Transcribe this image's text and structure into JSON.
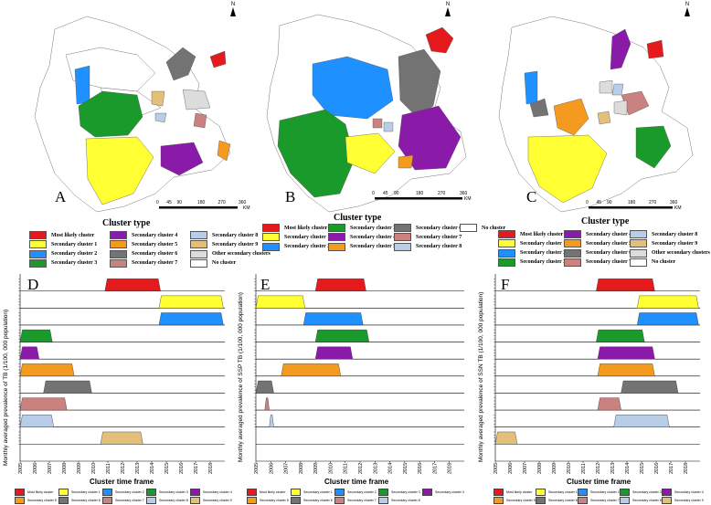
{
  "colors": {
    "red": "#e41a1c",
    "yellow": "#ffff33",
    "blue": "#1e90ff",
    "green": "#1a9a2a",
    "purple": "#8a1aa8",
    "orange": "#f39a1f",
    "gray": "#737373",
    "pink": "#c98280",
    "lightblue": "#b7cde8",
    "tan": "#e2c07a",
    "lightgray": "#dcdcdc",
    "white": "#ffffff"
  },
  "maps": [
    {
      "letter": "A",
      "north": "N",
      "scale_ticks": [
        "0",
        "45",
        "90",
        "180",
        "270",
        "360"
      ],
      "scale_unit": "KM"
    },
    {
      "letter": "B",
      "north": "N",
      "scale_ticks": [
        "0",
        "45",
        "90",
        "180",
        "270",
        "360"
      ],
      "scale_unit": "KM"
    },
    {
      "letter": "C",
      "north": "N",
      "scale_ticks": [
        "0",
        "45",
        "90",
        "180",
        "270",
        "360"
      ],
      "scale_unit": "KM"
    }
  ],
  "legend_a": {
    "title": "Cluster type",
    "items": [
      {
        "label": "Most likely cluster",
        "color": "#e41a1c"
      },
      {
        "label": "Secondary cluster 1",
        "color": "#ffff33"
      },
      {
        "label": "Secondary cluster 2",
        "color": "#1e90ff"
      },
      {
        "label": "Secondary cluster 3",
        "color": "#1a9a2a"
      },
      {
        "label": "Secondary cluster 4",
        "color": "#8a1aa8"
      },
      {
        "label": "Secondary cluster 5",
        "color": "#f39a1f"
      },
      {
        "label": "Secondary cluster 6",
        "color": "#737373"
      },
      {
        "label": "Secondary cluster 7",
        "color": "#c98280"
      },
      {
        "label": "Secondary cluster 8",
        "color": "#b7cde8"
      },
      {
        "label": "Secondary cluster 9",
        "color": "#e2c07a"
      },
      {
        "label": "Other secondary clusters",
        "color": "#dcdcdc"
      },
      {
        "label": "No cluster",
        "color": "#ffffff"
      }
    ]
  },
  "legend_b": {
    "title": "Cluster type",
    "items": [
      {
        "label": "Most likely cluster",
        "color": "#e41a1c"
      },
      {
        "label": "Secondary cluster 1",
        "color": "#ffff33"
      },
      {
        "label": "Secondary cluster 2",
        "color": "#1e90ff"
      },
      {
        "label": "Secondary cluster 3",
        "color": "#1a9a2a"
      },
      {
        "label": "Secondary cluster 4",
        "color": "#8a1aa8"
      },
      {
        "label": "Secondary cluster 5",
        "color": "#f39a1f"
      },
      {
        "label": "Secondary cluster 6",
        "color": "#737373"
      },
      {
        "label": "Secondary cluster 7",
        "color": "#c98280"
      },
      {
        "label": "Secondary cluster 8",
        "color": "#b7cde8"
      },
      {
        "label": "No cluster",
        "color": "#ffffff"
      }
    ]
  },
  "legend_c": {
    "title": "Cluster type",
    "items": [
      {
        "label": "Most likely cluster",
        "color": "#e41a1c"
      },
      {
        "label": "Secondary cluster 1",
        "color": "#ffff33"
      },
      {
        "label": "Secondary cluster 2",
        "color": "#1e90ff"
      },
      {
        "label": "Secondary cluster 3",
        "color": "#1a9a2a"
      },
      {
        "label": "Secondary cluster 4",
        "color": "#8a1aa8"
      },
      {
        "label": "Secondary cluster 5",
        "color": "#f39a1f"
      },
      {
        "label": "Secondary cluster 6",
        "color": "#737373"
      },
      {
        "label": "Secondary cluster 7",
        "color": "#c98280"
      },
      {
        "label": "Secondary cluster 8",
        "color": "#b7cde8"
      },
      {
        "label": "Secondary cluster 9",
        "color": "#e2c07a"
      },
      {
        "label": "Other secondary clusters",
        "color": "#dcdcdc"
      },
      {
        "label": "No cluster",
        "color": "#ffffff"
      }
    ]
  },
  "chart_data": [
    {
      "type": "bar",
      "panel": "D",
      "ylabel": "Monthly averaged prevalence of TB (1/100, 000 population)",
      "xlabel": "Cluster time frame",
      "x_ticks": [
        "2005",
        "2006",
        "2007",
        "2008",
        "2009",
        "2010",
        "2011",
        "2012",
        "2013",
        "2014",
        "2015",
        "2016",
        "2017",
        "2018"
      ],
      "xlim": [
        2005,
        2019
      ],
      "bands": [
        {
          "name": "Most likely cluster",
          "color": "#e41a1c",
          "start": 2010.8,
          "end": 2014.6
        },
        {
          "name": "Secondary cluster 1",
          "color": "#ffff33",
          "start": 2014.5,
          "end": 2018.9
        },
        {
          "name": "Secondary cluster 2",
          "color": "#1e90ff",
          "start": 2014.5,
          "end": 2018.9
        },
        {
          "name": "Secondary cluster 3",
          "color": "#1a9a2a",
          "start": 2005.0,
          "end": 2007.2
        },
        {
          "name": "Secondary cluster 4",
          "color": "#8a1aa8",
          "start": 2005.0,
          "end": 2006.3
        },
        {
          "name": "Secondary cluster 5",
          "color": "#f39a1f",
          "start": 2005.0,
          "end": 2008.7
        },
        {
          "name": "Secondary cluster 6",
          "color": "#737373",
          "start": 2006.6,
          "end": 2009.9
        },
        {
          "name": "Secondary cluster 7",
          "color": "#c98280",
          "start": 2005.0,
          "end": 2008.2
        },
        {
          "name": "Secondary cluster 8",
          "color": "#b7cde8",
          "start": 2005.0,
          "end": 2007.3
        },
        {
          "name": "Secondary cluster 9",
          "color": "#e2c07a",
          "start": 2010.5,
          "end": 2013.4
        }
      ],
      "legend": {
        "placement": "bottom"
      }
    },
    {
      "type": "bar",
      "panel": "E",
      "ylabel": "Monthly averaged prevalence of SSP TB (1/100, 000 population)",
      "xlabel": "Cluster time frame",
      "x_ticks": [
        "2005",
        "2006",
        "2007",
        "2008",
        "2009",
        "2010",
        "2011",
        "2012",
        "2013",
        "2014",
        "2015",
        "2016",
        "2017",
        "2018"
      ],
      "xlim": [
        2005,
        2019
      ],
      "bands": [
        {
          "name": "Most likely cluster",
          "color": "#e41a1c",
          "start": 2009.0,
          "end": 2012.4
        },
        {
          "name": "Secondary cluster 1",
          "color": "#ffff33",
          "start": 2005.0,
          "end": 2008.3
        },
        {
          "name": "Secondary cluster 2",
          "color": "#1e90ff",
          "start": 2008.2,
          "end": 2012.2
        },
        {
          "name": "Secondary cluster 3",
          "color": "#1a9a2a",
          "start": 2009.0,
          "end": 2012.6
        },
        {
          "name": "Secondary cluster 4",
          "color": "#8a1aa8",
          "start": 2009.0,
          "end": 2011.5
        },
        {
          "name": "Secondary cluster 5",
          "color": "#f39a1f",
          "start": 2006.7,
          "end": 2010.7
        },
        {
          "name": "Secondary cluster 6",
          "color": "#737373",
          "start": 2005.0,
          "end": 2006.2
        },
        {
          "name": "Secondary cluster 7",
          "color": "#c98280",
          "start": 2005.6,
          "end": 2005.9
        },
        {
          "name": "Secondary cluster 8",
          "color": "#b7cde8",
          "start": 2005.9,
          "end": 2006.2
        }
      ],
      "legend": {
        "placement": "bottom"
      }
    },
    {
      "type": "bar",
      "panel": "F",
      "ylabel": "Monthly averaged prevalence of SSN TB (1/100, 000 population)",
      "xlabel": "Cluster time frame",
      "x_ticks": [
        "2005",
        "2006",
        "2007",
        "2008",
        "2009",
        "2010",
        "2011",
        "2012",
        "2013",
        "2014",
        "2015",
        "2016",
        "2017",
        "2018"
      ],
      "xlim": [
        2005,
        2019
      ],
      "bands": [
        {
          "name": "Most likely cluster",
          "color": "#e41a1c",
          "start": 2011.9,
          "end": 2015.9
        },
        {
          "name": "Secondary cluster 1",
          "color": "#ffff33",
          "start": 2014.7,
          "end": 2018.9
        },
        {
          "name": "Secondary cluster 2",
          "color": "#1e90ff",
          "start": 2014.7,
          "end": 2018.9
        },
        {
          "name": "Secondary cluster 3",
          "color": "#1a9a2a",
          "start": 2011.9,
          "end": 2015.2
        },
        {
          "name": "Secondary cluster 4",
          "color": "#8a1aa8",
          "start": 2012.0,
          "end": 2015.9
        },
        {
          "name": "Secondary cluster 5",
          "color": "#f39a1f",
          "start": 2012.0,
          "end": 2015.9
        },
        {
          "name": "Secondary cluster 6",
          "color": "#737373",
          "start": 2013.6,
          "end": 2017.5
        },
        {
          "name": "Secondary cluster 7",
          "color": "#c98280",
          "start": 2012.0,
          "end": 2013.6
        },
        {
          "name": "Secondary cluster 8",
          "color": "#b7cde8",
          "start": 2013.1,
          "end": 2016.9
        },
        {
          "name": "Secondary cluster 9",
          "color": "#e2c07a",
          "start": 2005.0,
          "end": 2006.5
        }
      ],
      "legend": {
        "placement": "bottom"
      }
    }
  ]
}
